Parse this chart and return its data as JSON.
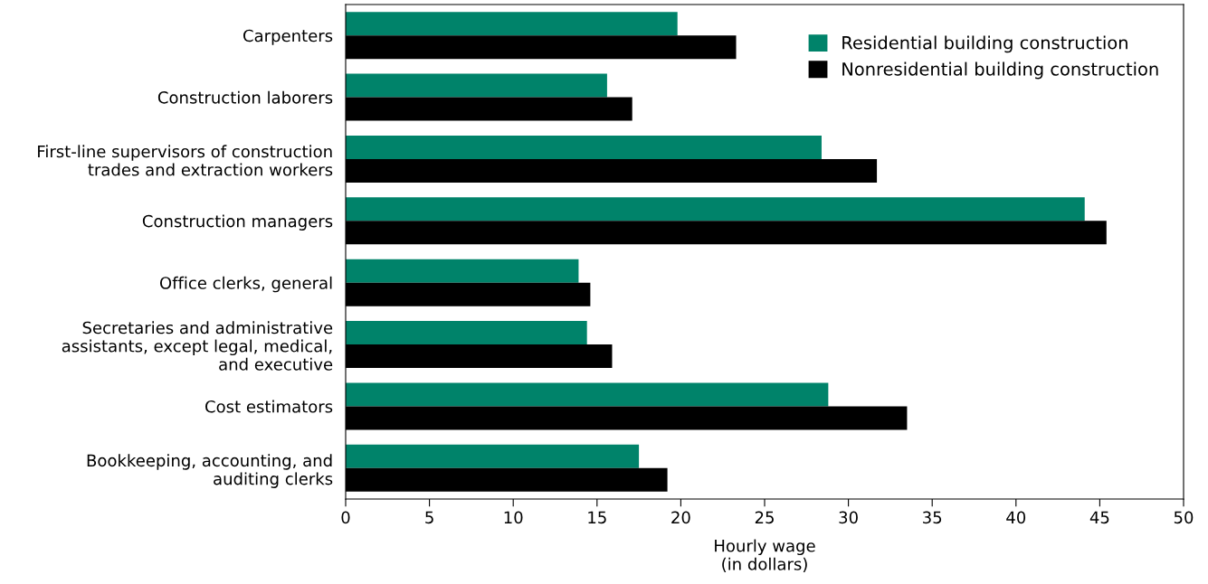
{
  "chart_data": {
    "type": "bar",
    "orientation": "horizontal",
    "xlabel": "Hourly wage\n(in dollars)",
    "categories": [
      "Carpenters",
      "Construction laborers",
      "First-line supervisors of construction\ntrades and extraction workers",
      "Construction managers",
      "Office clerks, general",
      "Secretaries and administrative\nassistants, except legal, medical,\nand executive",
      "Cost estimators",
      "Bookkeeping, accounting, and\nauditing clerks"
    ],
    "series": [
      {
        "name": "Residential building construction",
        "color": "#00836a",
        "values": [
          19.8,
          15.6,
          28.4,
          44.1,
          13.9,
          14.4,
          28.8,
          17.5
        ]
      },
      {
        "name": "Nonresidential building construction",
        "color": "#000000",
        "values": [
          23.3,
          17.1,
          31.7,
          45.4,
          14.6,
          15.9,
          33.5,
          19.2
        ]
      }
    ],
    "xlim": [
      0,
      50
    ],
    "xticks": [
      0,
      5,
      10,
      15,
      20,
      25,
      30,
      35,
      40,
      45,
      50
    ],
    "grid": false,
    "legend": "top right"
  }
}
